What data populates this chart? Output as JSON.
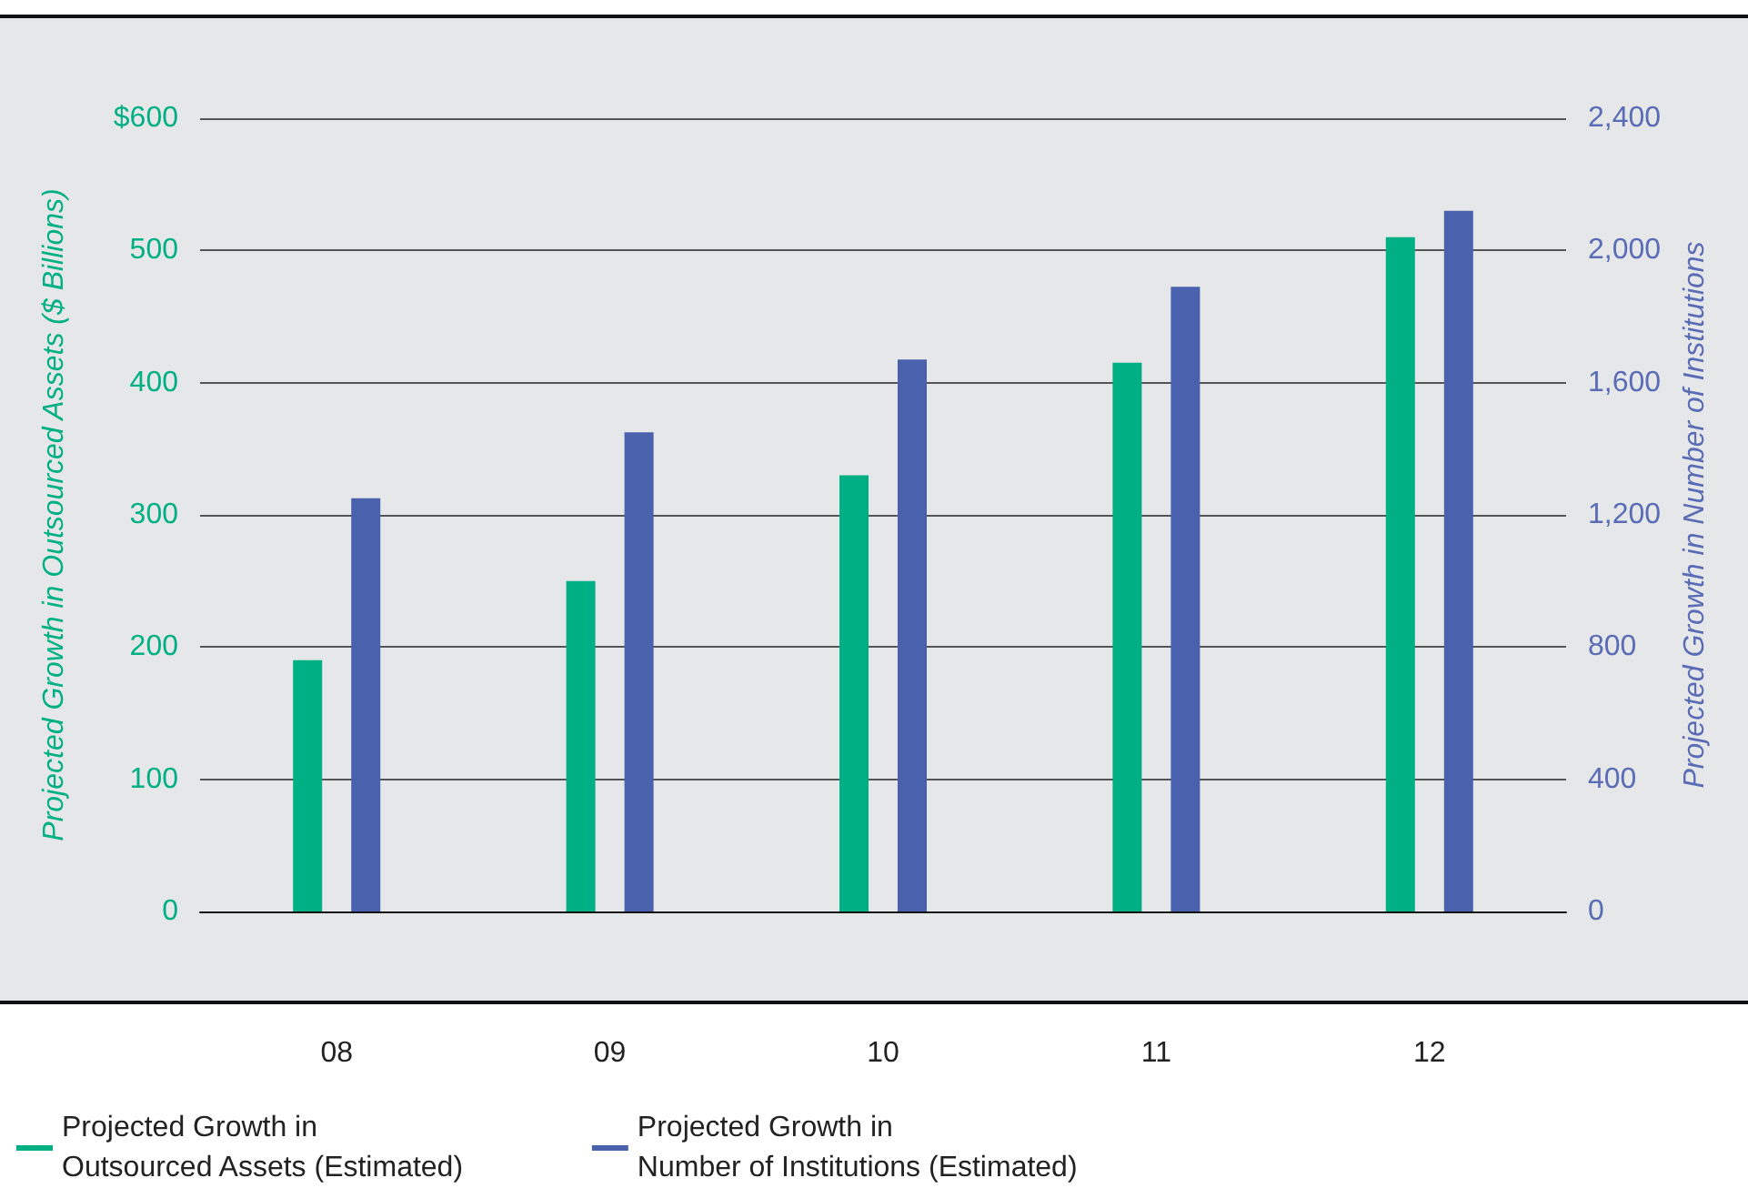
{
  "chart_data": {
    "type": "bar",
    "categories": [
      "08",
      "09",
      "10",
      "11",
      "12"
    ],
    "ylabel": "Projected Growth in Outsourced Assets ($ Billions)",
    "y2label": "Projected Growth in Number of Institutions",
    "ylim": [
      0,
      600
    ],
    "yticks": [
      0,
      100,
      200,
      300,
      400,
      500,
      {
        "value": 600,
        "label": "$600"
      }
    ],
    "y2lim": [
      0,
      2400
    ],
    "y2ticks": [
      0,
      {
        "value": 400,
        "label": "400"
      },
      {
        "value": 800,
        "label": "800"
      },
      {
        "value": 1200,
        "label": "1,200"
      },
      {
        "value": 1600,
        "label": "1,600"
      },
      {
        "value": 2000,
        "label": "2,000"
      },
      {
        "value": 2400,
        "label": "2,400"
      }
    ],
    "grid": "y",
    "legend": "bottom left",
    "series": [
      {
        "name": "Projected Growth in Outsourced Assets (Estimated)",
        "color": "#00b084",
        "values": [
          190,
          250,
          330,
          415,
          510
        ]
      },
      {
        "name": "Projected Growth in Number of Institutions (Estimated)",
        "color": "#4a61ad",
        "axis": "y2",
        "values": [
          1250,
          1450,
          1670,
          1890,
          2120
        ]
      }
    ]
  }
}
